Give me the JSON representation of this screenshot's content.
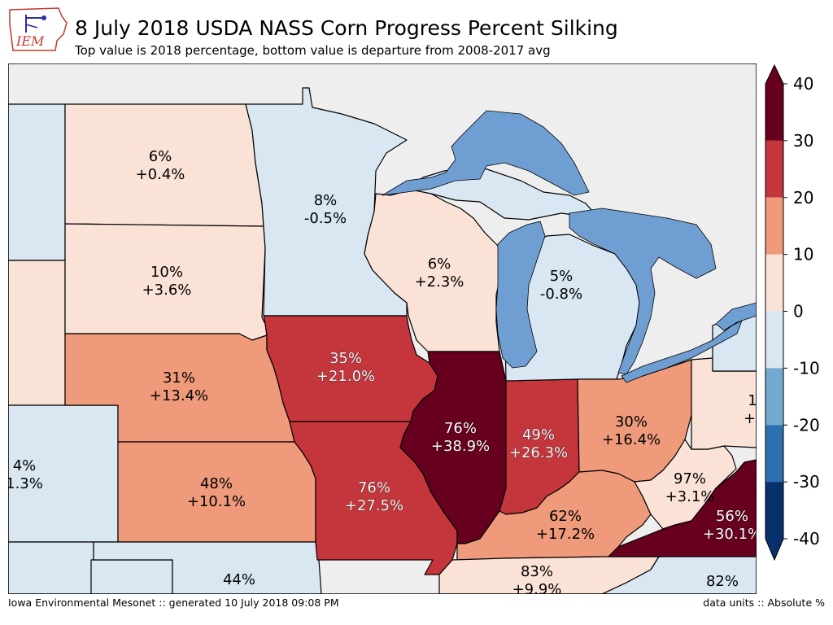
{
  "header": {
    "logo_text": "IEM",
    "title": "8 July 2018 USDA NASS Corn Progress Percent Silking",
    "subtitle": "Top value is 2018 percentage, bottom value is departure from 2008-2017 avg"
  },
  "footer": {
    "left": "Iowa Environmental Mesonet :: generated 10 July 2018 09:08 PM",
    "right": "data units :: Absolute %"
  },
  "colors": {
    "lake": "#6f9fd2",
    "background": "#eeeeee",
    "border": "#000000",
    "bins": [
      "#08306b",
      "#2b6fb0",
      "#74a9d0",
      "#d8e7f2",
      "#fbe2d6",
      "#ef9a7a",
      "#c4353c",
      "#67001f"
    ]
  },
  "colorbar": {
    "ticks": [
      "40",
      "30",
      "20",
      "10",
      "0",
      "-10",
      "-20",
      "-30",
      "-40"
    ]
  },
  "states": [
    {
      "id": "north-dakota",
      "line1": "6%",
      "line2": "+0.4%",
      "bin": 4
    },
    {
      "id": "south-dakota",
      "line1": "10%",
      "line2": "+3.6%",
      "bin": 4
    },
    {
      "id": "nebraska",
      "line1": "31%",
      "line2": "+13.4%",
      "bin": 5
    },
    {
      "id": "kansas",
      "line1": "48%",
      "line2": "+10.1%",
      "bin": 5
    },
    {
      "id": "minnesota",
      "line1": "8%",
      "line2": "-0.5%",
      "bin": 3
    },
    {
      "id": "iowa",
      "line1": "35%",
      "line2": "+21.0%",
      "bin": 6
    },
    {
      "id": "missouri",
      "line1": "76%",
      "line2": "+27.5%",
      "bin": 6
    },
    {
      "id": "wisconsin",
      "line1": "6%",
      "line2": "+2.3%",
      "bin": 4
    },
    {
      "id": "illinois",
      "line1": "76%",
      "line2": "+38.9%",
      "bin": 7
    },
    {
      "id": "michigan",
      "line1": "5%",
      "line2": "-0.8%",
      "bin": 3
    },
    {
      "id": "indiana",
      "line1": "49%",
      "line2": "+26.3%",
      "bin": 6
    },
    {
      "id": "ohio",
      "line1": "30%",
      "line2": "+16.4%",
      "bin": 5
    },
    {
      "id": "kentucky",
      "line1": "62%",
      "line2": "+17.2%",
      "bin": 5
    },
    {
      "id": "west-virginia",
      "line1": "97%",
      "line2": "+3.1%",
      "bin": 4
    },
    {
      "id": "virginia",
      "line1": "56%",
      "line2": "+30.1%",
      "bin": 7
    },
    {
      "id": "tennessee",
      "line1": "83%",
      "line2": "+9.9%",
      "bin": 4
    },
    {
      "id": "colorado",
      "line1": "4%",
      "line2": "1.3%",
      "bin": 3
    },
    {
      "id": "oklahoma",
      "line1": "44%",
      "line2": "",
      "bin": 3
    },
    {
      "id": "north-carolina",
      "line1": "82%",
      "line2": "",
      "bin": 3
    },
    {
      "id": "pennsylvania",
      "line1": "1",
      "line2": "+(",
      "bin": 4
    }
  ]
}
